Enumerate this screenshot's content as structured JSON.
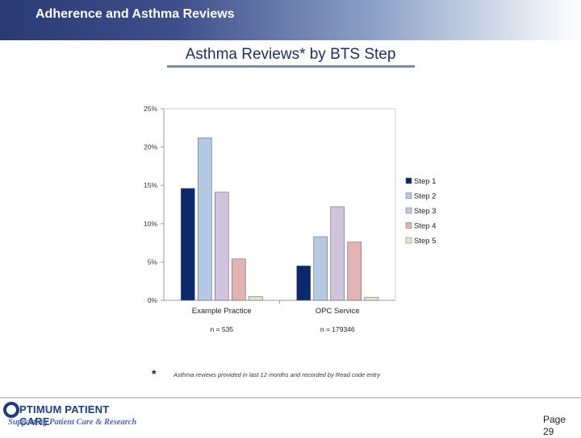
{
  "header": {
    "title": "Adherence and Asthma Reviews"
  },
  "slide": {
    "title": "Asthma Reviews* by BTS Step",
    "footnote_marker": "*",
    "footnote": "Asthma reviews provided in last 12 months and recorded by Read code entry",
    "page_label": "Page",
    "page_number": "29"
  },
  "logo": {
    "name": "PTIMUM PATIENT CARE",
    "tagline": "Supporting Patient Care & Research"
  },
  "colors": {
    "header_dark": "#2b3a75",
    "step1": "#0b2a6b",
    "step2": "#b5c9e4",
    "step3": "#cfc3dd",
    "step4": "#e3b3b3",
    "step5": "#e0e8c8"
  },
  "chart_data": {
    "type": "bar",
    "categories": [
      "Example Practice",
      "OPC Service"
    ],
    "sample_sizes": [
      "n = 535",
      "n = 179346"
    ],
    "series": [
      {
        "name": "Step 1",
        "values": [
          14.6,
          4.5
        ],
        "color": "#0b2a6b"
      },
      {
        "name": "Step 2",
        "values": [
          21.2,
          8.3
        ],
        "color": "#b5c9e4"
      },
      {
        "name": "Step 3",
        "values": [
          14.1,
          12.2
        ],
        "color": "#cfc3dd"
      },
      {
        "name": "Step 4",
        "values": [
          5.4,
          7.6
        ],
        "color": "#e3b3b3"
      },
      {
        "name": "Step 5",
        "values": [
          0.5,
          0.4
        ],
        "color": "#e0e8c8"
      }
    ],
    "yticks": [
      "0%",
      "5%",
      "10%",
      "15%",
      "20%",
      "25%"
    ],
    "ylim": [
      0,
      25
    ],
    "grid": false,
    "legend": "right"
  }
}
